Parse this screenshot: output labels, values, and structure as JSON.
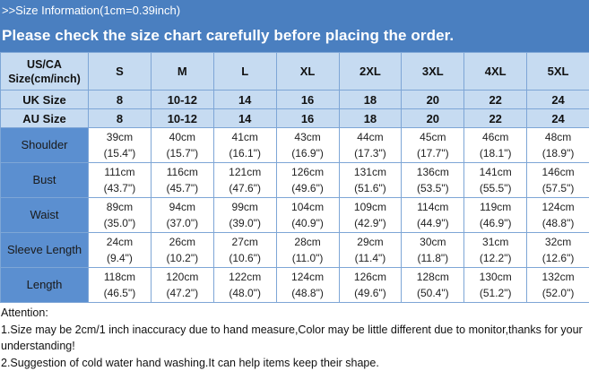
{
  "header": {
    "line1": ">>Size Information(1cm=0.39inch)",
    "line2": "Please check the size chart carefully before placing the order."
  },
  "colors": {
    "band": "#4a7fc0",
    "header_cell": "#c6dbf1",
    "row_label": "#5b8fd0"
  },
  "table": {
    "corner_label": "US/CA Size(cm/inch)",
    "sizes": [
      "S",
      "M",
      "L",
      "XL",
      "2XL",
      "3XL",
      "4XL",
      "5XL"
    ],
    "size_rows": [
      {
        "label": "UK Size",
        "values": [
          "8",
          "10-12",
          "14",
          "16",
          "18",
          "20",
          "22",
          "24"
        ]
      },
      {
        "label": "AU Size",
        "values": [
          "8",
          "10-12",
          "14",
          "16",
          "18",
          "20",
          "22",
          "24"
        ]
      }
    ],
    "measurements": [
      {
        "label": "Shoulder",
        "cm": [
          "39cm",
          "40cm",
          "41cm",
          "43cm",
          "44cm",
          "45cm",
          "46cm",
          "48cm"
        ],
        "inch": [
          "(15.4\")",
          "(15.7\")",
          "(16.1\")",
          "(16.9\")",
          "(17.3\")",
          "(17.7\")",
          "(18.1\")",
          "(18.9\")"
        ]
      },
      {
        "label": "Bust",
        "cm": [
          "111cm",
          "116cm",
          "121cm",
          "126cm",
          "131cm",
          "136cm",
          "141cm",
          "146cm"
        ],
        "inch": [
          "(43.7\")",
          "(45.7\")",
          "(47.6\")",
          "(49.6\")",
          "(51.6\")",
          "(53.5\")",
          "(55.5\")",
          "(57.5\")"
        ]
      },
      {
        "label": "Waist",
        "cm": [
          "89cm",
          "94cm",
          "99cm",
          "104cm",
          "109cm",
          "114cm",
          "119cm",
          "124cm"
        ],
        "inch": [
          "(35.0\")",
          "(37.0\")",
          "(39.0\")",
          "(40.9\")",
          "(42.9\")",
          "(44.9\")",
          "(46.9\")",
          "(48.8\")"
        ]
      },
      {
        "label": "Sleeve Length",
        "cm": [
          "24cm",
          "26cm",
          "27cm",
          "28cm",
          "29cm",
          "30cm",
          "31cm",
          "32cm"
        ],
        "inch": [
          "(9.4\")",
          "(10.2\")",
          "(10.6\")",
          "(11.0\")",
          "(11.4\")",
          "(11.8\")",
          "(12.2\")",
          "(12.6\")"
        ]
      },
      {
        "label": "Length",
        "cm": [
          "118cm",
          "120cm",
          "122cm",
          "124cm",
          "126cm",
          "128cm",
          "130cm",
          "132cm"
        ],
        "inch": [
          "(46.5\")",
          "(47.2\")",
          "(48.0\")",
          "(48.8\")",
          "(49.6\")",
          "(50.4\")",
          "(51.2\")",
          "(52.0\")"
        ]
      }
    ]
  },
  "attention": {
    "title": "Attention:",
    "note1": "1.Size may be 2cm/1  inch inaccuracy due to hand measure,Color may be little different due to monitor,thanks for your understanding!",
    "note2": "2.Suggestion of cold water hand washing.It can help items keep their shape."
  }
}
